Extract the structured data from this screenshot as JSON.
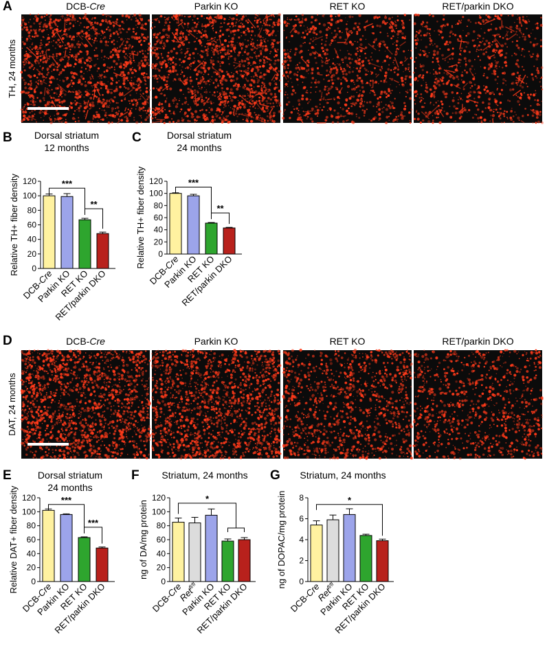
{
  "panels": {
    "A": {
      "letter": "A",
      "row_label": "TH, 24 months",
      "columns": [
        "DCB-Cre",
        "Parkin KO",
        "RET KO",
        "RET/parkin DKO"
      ],
      "intensity": [
        0.85,
        0.9,
        0.55,
        0.5
      ]
    },
    "D": {
      "letter": "D",
      "row_label": "DAT, 24 months",
      "columns": [
        "DCB-Cre",
        "Parkin KO",
        "RET KO",
        "RET/parkin DKO"
      ],
      "intensity": [
        0.9,
        0.85,
        0.6,
        0.5
      ]
    }
  },
  "colors": {
    "DCB-Cre": "#fff2a0",
    "Ret fl/fl": "#dcdcdc",
    "Parkin KO": "#9ca4ea",
    "RET KO": "#2ea52e",
    "RET/parkin DKO": "#b8211c",
    "micrograph_signal": "#ff3a1a",
    "micrograph_bg": "#0b0b0b"
  },
  "chart_data": [
    {
      "letter": "B",
      "type": "bar",
      "title": [
        "Dorsal striatum",
        "12 months"
      ],
      "ylabel": "Relative TH+ fiber density",
      "ylim": [
        0,
        120
      ],
      "yticks": [
        0,
        20,
        40,
        60,
        80,
        100,
        120
      ],
      "categories": [
        "DCB-Cre",
        "Parkin KO",
        "RET KO",
        "RET/parkin DKO"
      ],
      "values": [
        100,
        99,
        67,
        48
      ],
      "errors": [
        2.5,
        4,
        2,
        2
      ],
      "significance": [
        {
          "from": 0,
          "to": 2,
          "label": "***"
        },
        {
          "from": 2,
          "to": 3,
          "label": "**"
        }
      ]
    },
    {
      "letter": "C",
      "type": "bar",
      "title": [
        "Dorsal striatum",
        "24 months"
      ],
      "ylabel": "Relative TH+ fiber density",
      "ylim": [
        0,
        120
      ],
      "yticks": [
        0,
        20,
        40,
        60,
        80,
        100,
        120
      ],
      "categories": [
        "DCB-Cre",
        "Parkin KO",
        "RET KO",
        "RET/parkin DKO"
      ],
      "values": [
        100,
        96,
        51,
        43
      ],
      "errors": [
        1,
        2.5,
        1,
        1
      ],
      "significance": [
        {
          "from": 0,
          "to": 2,
          "label": "***"
        },
        {
          "from": 2,
          "to": 3,
          "label": "**"
        }
      ]
    },
    {
      "letter": "E",
      "type": "bar",
      "title": [
        "Dorsal striatum",
        "24 months"
      ],
      "ylabel": "Relative DAT+ fiber density",
      "ylim": [
        0,
        120
      ],
      "yticks": [
        0,
        20,
        40,
        60,
        80,
        100,
        120
      ],
      "categories": [
        "DCB-Cre",
        "Parkin KO",
        "RET KO",
        "RET/parkin DKO"
      ],
      "values": [
        102,
        96,
        63,
        48
      ],
      "errors": [
        2,
        1,
        1,
        1.5
      ],
      "significance": [
        {
          "from": 0,
          "to": 2,
          "label": "***"
        },
        {
          "from": 2,
          "to": 3,
          "label": "***"
        }
      ]
    },
    {
      "letter": "F",
      "type": "bar",
      "title": [
        "Striatum, 24 months"
      ],
      "ylabel": "ng of DA/mg protein",
      "ylim": [
        0,
        120
      ],
      "yticks": [
        0,
        20,
        40,
        60,
        80,
        100,
        120
      ],
      "categories": [
        "DCB-Cre",
        "Ret fl/fl",
        "Parkin KO",
        "RET KO",
        "RET/parkin DKO"
      ],
      "values": [
        85,
        84,
        95,
        58,
        60
      ],
      "errors": [
        6,
        8,
        9,
        3,
        3
      ],
      "significance": [
        {
          "from": 0,
          "to_group": [
            3,
            4
          ],
          "label": "*"
        }
      ]
    },
    {
      "letter": "G",
      "type": "bar",
      "title": [
        "Striatum, 24 months"
      ],
      "ylabel": "ng of DOPAC/mg protein",
      "ylim": [
        0,
        8
      ],
      "yticks": [
        0,
        2,
        4,
        6,
        8
      ],
      "categories": [
        "DCB-Cre",
        "Ret fl/fl",
        "Parkin KO",
        "RET KO",
        "RET/parkin DKO"
      ],
      "values": [
        5.4,
        5.9,
        6.4,
        4.4,
        3.9
      ],
      "errors": [
        0.4,
        0.45,
        0.55,
        0.12,
        0.15
      ],
      "significance": [
        {
          "from": 0,
          "to": 4,
          "label": "*"
        }
      ]
    }
  ]
}
